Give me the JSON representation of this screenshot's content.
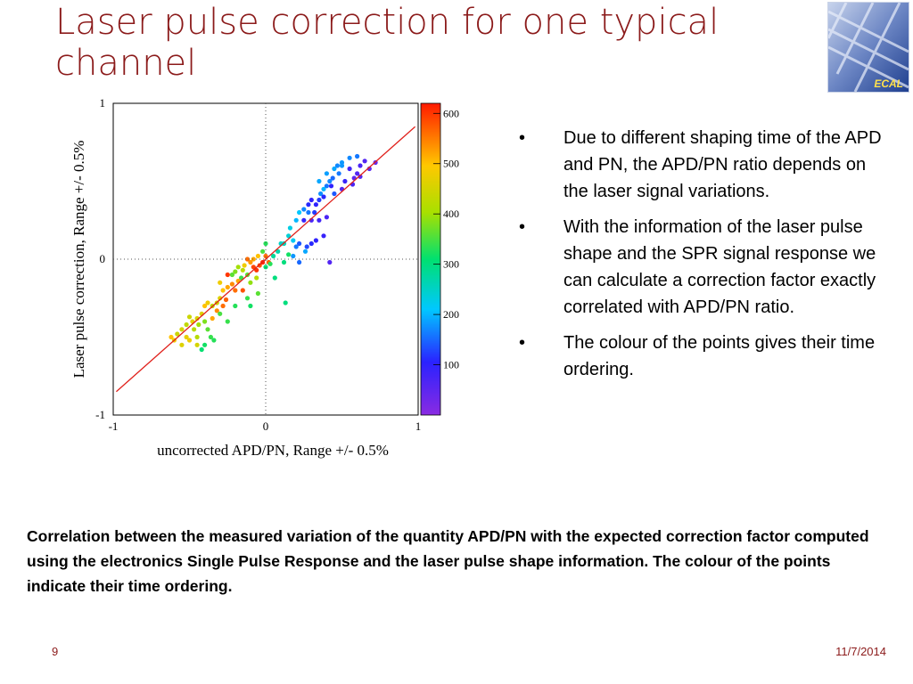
{
  "slide": {
    "title": "Laser pulse correction for one typical channel",
    "logo_text": "ECAL",
    "page_number": "9",
    "date": "11/7/2014",
    "accent_color": "#8b1a1a"
  },
  "bullets": [
    {
      "marker": "•",
      "text": "Due to different shaping time of the APD and PN, the APD/PN ratio depends on the laser signal variations."
    },
    {
      "marker": "•",
      "text": "With the information of the laser pulse shape and the SPR signal response we can calculate a correction factor exactly correlated with APD/PN ratio."
    },
    {
      "marker": "•",
      "text": "The colour of the points gives their time ordering."
    }
  ],
  "caption": "Correlation between the measured variation of the quantity APD/PN with the expected correction factor computed using the electronics Single Pulse Response and the laser pulse shape information. The colour of the points indicate their time ordering.",
  "chart_data": {
    "type": "scatter",
    "xlabel": "uncorrected APD/PN, Range +/- 0.5%",
    "ylabel": "Laser pulse correction, Range +/- 0.5%",
    "xlim": [
      -1,
      1
    ],
    "ylim": [
      -1,
      1
    ],
    "x_ticks": [
      "-1",
      "0",
      "1"
    ],
    "y_ticks": [
      "1",
      "0",
      "-1"
    ],
    "grid": "dotted lines at x=0 and y=0",
    "colorbar": {
      "range": [
        0,
        620
      ],
      "tick_labels": [
        "600",
        "500",
        "400",
        "300",
        "200",
        "100"
      ],
      "tick_values": [
        600,
        500,
        400,
        300,
        200,
        100
      ],
      "colormap": "rainbow (purple low, red high)"
    },
    "fit_line": {
      "color": "#e0201b",
      "points": [
        [
          -0.98,
          -0.85
        ],
        [
          0.98,
          0.85
        ]
      ]
    },
    "points": [
      [
        0.72,
        0.62,
        40
      ],
      [
        0.68,
        0.58,
        50
      ],
      [
        0.65,
        0.63,
        60
      ],
      [
        0.62,
        0.6,
        70
      ],
      [
        0.6,
        0.55,
        60
      ],
      [
        0.58,
        0.52,
        50
      ],
      [
        0.55,
        0.58,
        80
      ],
      [
        0.57,
        0.48,
        70
      ],
      [
        0.52,
        0.5,
        90
      ],
      [
        0.5,
        0.45,
        60
      ],
      [
        0.48,
        0.55,
        160
      ],
      [
        0.47,
        0.6,
        170
      ],
      [
        0.5,
        0.62,
        180
      ],
      [
        0.45,
        0.58,
        190
      ],
      [
        0.44,
        0.52,
        150
      ],
      [
        0.42,
        0.5,
        170
      ],
      [
        0.4,
        0.47,
        160
      ],
      [
        0.38,
        0.45,
        200
      ],
      [
        0.36,
        0.42,
        175
      ],
      [
        0.4,
        0.55,
        185
      ],
      [
        0.35,
        0.5,
        190
      ],
      [
        0.43,
        0.47,
        100
      ],
      [
        0.38,
        0.4,
        110
      ],
      [
        0.35,
        0.38,
        120
      ],
      [
        0.33,
        0.35,
        100
      ],
      [
        0.3,
        0.38,
        95
      ],
      [
        0.28,
        0.35,
        110
      ],
      [
        0.32,
        0.3,
        120
      ],
      [
        0.28,
        0.3,
        160
      ],
      [
        0.25,
        0.32,
        170
      ],
      [
        0.22,
        0.3,
        210
      ],
      [
        0.2,
        0.25,
        200
      ],
      [
        0.25,
        0.25,
        90
      ],
      [
        0.3,
        0.25,
        70
      ],
      [
        0.35,
        0.25,
        80
      ],
      [
        0.4,
        0.27,
        70
      ],
      [
        0.38,
        0.15,
        90
      ],
      [
        0.33,
        0.12,
        100
      ],
      [
        0.3,
        0.1,
        110
      ],
      [
        0.27,
        0.08,
        130
      ],
      [
        0.22,
        0.1,
        140
      ],
      [
        0.2,
        0.08,
        160
      ],
      [
        0.18,
        0.12,
        220
      ],
      [
        0.15,
        0.15,
        240
      ],
      [
        0.12,
        0.1,
        260
      ],
      [
        0.1,
        0.1,
        250
      ],
      [
        0.08,
        0.05,
        270
      ],
      [
        0.05,
        0.02,
        280
      ],
      [
        0.18,
        0.02,
        180
      ],
      [
        0.22,
        -0.02,
        150
      ],
      [
        0.26,
        0.05,
        190
      ],
      [
        0.12,
        -0.02,
        300
      ],
      [
        0.15,
        0.03,
        320
      ],
      [
        0.42,
        -0.02,
        60
      ],
      [
        0.5,
        0.6,
        180
      ],
      [
        0.55,
        0.65,
        170
      ],
      [
        0.6,
        0.66,
        160
      ],
      [
        0.62,
        0.53,
        60
      ],
      [
        0.45,
        0.42,
        140
      ],
      [
        0.16,
        0.2,
        230
      ],
      [
        0.0,
        0.1,
        330
      ],
      [
        -0.02,
        0.05,
        350
      ],
      [
        -0.05,
        0.02,
        500
      ],
      [
        -0.08,
        0.0,
        520
      ],
      [
        -0.1,
        -0.02,
        530
      ],
      [
        -0.12,
        0.0,
        560
      ],
      [
        -0.04,
        -0.04,
        580
      ],
      [
        -0.06,
        -0.07,
        600
      ],
      [
        -0.08,
        -0.05,
        590
      ],
      [
        -0.02,
        -0.02,
        610
      ],
      [
        0.02,
        -0.02,
        570
      ],
      [
        0.0,
        0.02,
        560
      ],
      [
        -0.14,
        -0.04,
        480
      ],
      [
        -0.15,
        -0.07,
        420
      ],
      [
        -0.18,
        -0.05,
        400
      ],
      [
        -0.2,
        -0.08,
        380
      ],
      [
        -0.22,
        -0.1,
        360
      ],
      [
        -0.16,
        -0.12,
        340
      ],
      [
        -0.12,
        -0.1,
        360
      ],
      [
        -0.1,
        -0.15,
        390
      ],
      [
        -0.06,
        -0.12,
        420
      ],
      [
        0.0,
        -0.05,
        310
      ],
      [
        0.03,
        -0.03,
        330
      ],
      [
        -0.18,
        -0.14,
        520
      ],
      [
        -0.22,
        -0.16,
        540
      ],
      [
        -0.25,
        -0.18,
        520
      ],
      [
        -0.28,
        -0.2,
        500
      ],
      [
        -0.3,
        -0.15,
        480
      ],
      [
        -0.25,
        -0.1,
        600
      ],
      [
        -0.2,
        -0.2,
        560
      ],
      [
        -0.15,
        -0.2,
        580
      ],
      [
        -0.12,
        -0.25,
        340
      ],
      [
        -0.1,
        -0.3,
        320
      ],
      [
        0.13,
        -0.28,
        300
      ],
      [
        -0.05,
        -0.22,
        360
      ],
      [
        -0.3,
        -0.25,
        460
      ],
      [
        -0.32,
        -0.28,
        440
      ],
      [
        -0.35,
        -0.3,
        420
      ],
      [
        -0.38,
        -0.28,
        480
      ],
      [
        -0.4,
        -0.3,
        500
      ],
      [
        -0.42,
        -0.35,
        460
      ],
      [
        -0.45,
        -0.38,
        450
      ],
      [
        -0.48,
        -0.4,
        470
      ],
      [
        -0.5,
        -0.37,
        440
      ],
      [
        -0.52,
        -0.42,
        430
      ],
      [
        -0.55,
        -0.45,
        450
      ],
      [
        -0.58,
        -0.48,
        440
      ],
      [
        -0.55,
        -0.55,
        460
      ],
      [
        -0.5,
        -0.52,
        480
      ],
      [
        -0.47,
        -0.45,
        420
      ],
      [
        -0.44,
        -0.42,
        400
      ],
      [
        -0.4,
        -0.4,
        380
      ],
      [
        -0.38,
        -0.45,
        360
      ],
      [
        -0.36,
        -0.5,
        340
      ],
      [
        -0.34,
        -0.52,
        330
      ],
      [
        -0.4,
        -0.55,
        320
      ],
      [
        -0.42,
        -0.58,
        310
      ],
      [
        -0.45,
        -0.5,
        420
      ],
      [
        -0.6,
        -0.52,
        480
      ],
      [
        -0.62,
        -0.5,
        500
      ],
      [
        -0.35,
        -0.38,
        520
      ],
      [
        -0.32,
        -0.33,
        540
      ],
      [
        -0.28,
        -0.3,
        560
      ],
      [
        -0.26,
        -0.26,
        570
      ],
      [
        -0.3,
        -0.35,
        350
      ],
      [
        -0.25,
        -0.4,
        340
      ],
      [
        -0.2,
        -0.3,
        330
      ],
      [
        0.06,
        -0.12,
        300
      ],
      [
        -0.45,
        -0.55,
        450
      ],
      [
        -0.52,
        -0.5,
        470
      ]
    ]
  }
}
